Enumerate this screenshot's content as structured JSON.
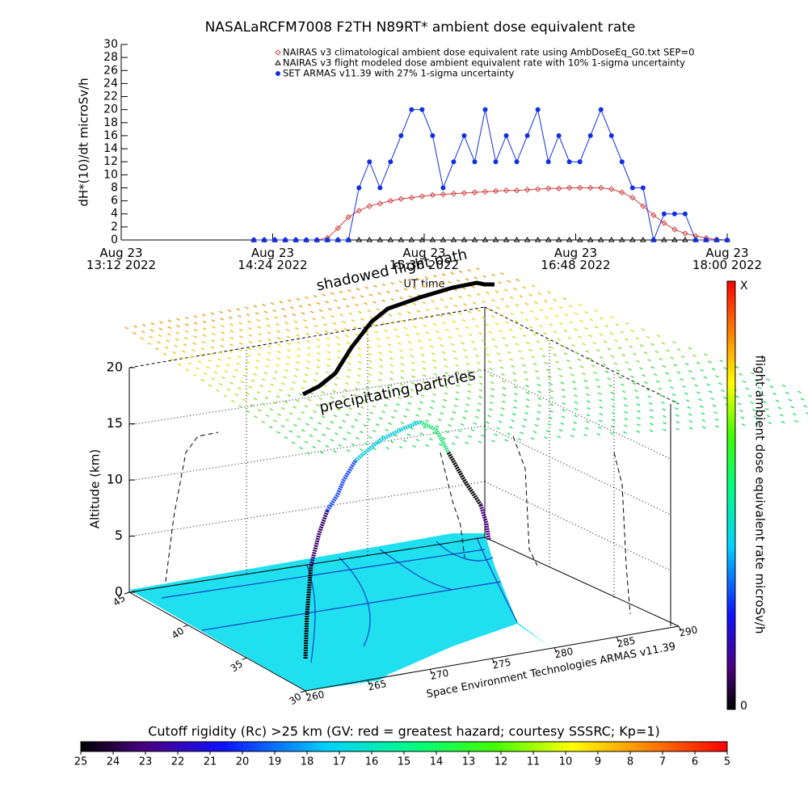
{
  "chart_data": [
    {
      "type": "line",
      "title": "NASALaRCFM7008  F2TH N89RT* ambient dose equivalent rate",
      "y_label": "dH*(10)/dt microSv/h",
      "x_label": "UT time",
      "x": [
        "2022-08-23 14:15",
        "2022-08-23 14:20",
        "2022-08-23 14:25",
        "2022-08-23 14:30",
        "2022-08-23 14:35",
        "2022-08-23 14:40",
        "2022-08-23 14:45",
        "2022-08-23 14:50",
        "2022-08-23 14:55",
        "2022-08-23 15:00",
        "2022-08-23 15:05",
        "2022-08-23 15:10",
        "2022-08-23 15:15",
        "2022-08-23 15:20",
        "2022-08-23 15:25",
        "2022-08-23 15:30",
        "2022-08-23 15:35",
        "2022-08-23 15:40",
        "2022-08-23 15:45",
        "2022-08-23 15:50",
        "2022-08-23 15:55",
        "2022-08-23 16:00",
        "2022-08-23 16:05",
        "2022-08-23 16:10",
        "2022-08-23 16:15",
        "2022-08-23 16:20",
        "2022-08-23 16:25",
        "2022-08-23 16:30",
        "2022-08-23 16:35",
        "2022-08-23 16:40",
        "2022-08-23 16:45",
        "2022-08-23 16:50",
        "2022-08-23 16:55",
        "2022-08-23 17:00",
        "2022-08-23 17:05",
        "2022-08-23 17:10",
        "2022-08-23 17:15",
        "2022-08-23 17:20",
        "2022-08-23 17:25",
        "2022-08-23 17:30",
        "2022-08-23 17:35",
        "2022-08-23 17:40",
        "2022-08-23 17:45",
        "2022-08-23 17:50",
        "2022-08-23 17:55",
        "2022-08-23 18:00"
      ],
      "series": [
        {
          "name": "NAIRAS v3 climatological ambient dose equivalent rate using AmbDoseEq_G0.txt SEP=0",
          "color": "#d04040",
          "marker": "diamond",
          "values": [
            0,
            0,
            0,
            0,
            0,
            0,
            0,
            0.3,
            1.8,
            3.5,
            4.5,
            5.2,
            5.6,
            6.0,
            6.3,
            6.5,
            6.7,
            6.9,
            7.0,
            7.1,
            7.2,
            7.3,
            7.4,
            7.5,
            7.6,
            7.6,
            7.7,
            7.8,
            7.9,
            7.9,
            8.0,
            8.0,
            8.0,
            8.0,
            7.8,
            7.3,
            6.5,
            5.2,
            3.8,
            2.6,
            1.6,
            1.0,
            0.6,
            0.3,
            0.1,
            0
          ]
        },
        {
          "name": "NAIRAS v3 flight modeled dose ambient equivalent rate with 10% 1-sigma uncertainty",
          "color": "#000000",
          "marker": "triangle",
          "values": [
            0,
            0,
            0,
            0,
            0,
            0,
            0,
            0,
            0,
            0,
            0,
            0,
            0,
            0,
            0,
            0,
            0,
            0,
            0,
            0,
            0,
            0,
            0,
            0,
            0,
            0,
            0,
            0,
            0,
            0,
            0,
            0,
            0,
            0,
            0,
            0,
            0,
            0,
            0,
            0,
            0,
            0,
            0,
            0,
            0,
            0
          ]
        },
        {
          "name": "SET ARMAS v11.39 with 27% 1-sigma uncertainty",
          "color": "#1030e0",
          "marker": "circle",
          "values": [
            0,
            0,
            0,
            0,
            0,
            0,
            0,
            0,
            0,
            0,
            8,
            12,
            8,
            12,
            16,
            20,
            20,
            16,
            8,
            12,
            16,
            12,
            20,
            12,
            16,
            12,
            16,
            20,
            12,
            16,
            12,
            12,
            16,
            20,
            16,
            12,
            8,
            8,
            0,
            4,
            4,
            4,
            0,
            0,
            0,
            0
          ]
        }
      ],
      "xlim": [
        "2022-08-23 13:12",
        "2022-08-23 18:00"
      ],
      "xticks": [
        {
          "value": "2022-08-23 13:12",
          "label": "Aug 23\n13:12 2022"
        },
        {
          "value": "2022-08-23 14:24",
          "label": "Aug 23\n14:24 2022"
        },
        {
          "value": "2022-08-23 15:36",
          "label": "Aug 23\n15:36 2022"
        },
        {
          "value": "2022-08-23 16:48",
          "label": "Aug 23\n16:48 2022"
        },
        {
          "value": "2022-08-23 18:00",
          "label": "Aug 23\n18:00 2022"
        }
      ],
      "ylim": [
        0,
        30
      ],
      "yticks": [
        0,
        2,
        4,
        6,
        8,
        10,
        12,
        14,
        16,
        18,
        20,
        22,
        24,
        26,
        28,
        30
      ]
    },
    {
      "type": "3d",
      "annotations": [
        "shadowed flight path",
        "precipitating particles"
      ],
      "z_label": "Altitude (km)",
      "zlim": [
        0,
        20
      ],
      "zticks": [
        0,
        5,
        10,
        15,
        20
      ],
      "ylim": [
        30,
        45
      ],
      "yticks": [
        45,
        40,
        35,
        30
      ],
      "xlim": [
        260,
        290
      ],
      "xticks": [
        260,
        265,
        270,
        275,
        280,
        285,
        290
      ],
      "credit": "Space Environment Technologies ARMAS v11.39",
      "colorbar": {
        "label": "flight ambient dose equivalent rate microSv/h",
        "max_label": "X",
        "min": 0
      }
    },
    {
      "type": "colorbar",
      "title": "Cutoff rigidity (Rc) >25 km (GV: red = greatest hazard; courtesy SSSRC; Kp=1)",
      "lim": [
        25,
        5
      ],
      "ticks": [
        25,
        24,
        23,
        22,
        21,
        20,
        19,
        18,
        17,
        16,
        15,
        14,
        13,
        12,
        11,
        10,
        9,
        8,
        7,
        6,
        5
      ]
    }
  ]
}
